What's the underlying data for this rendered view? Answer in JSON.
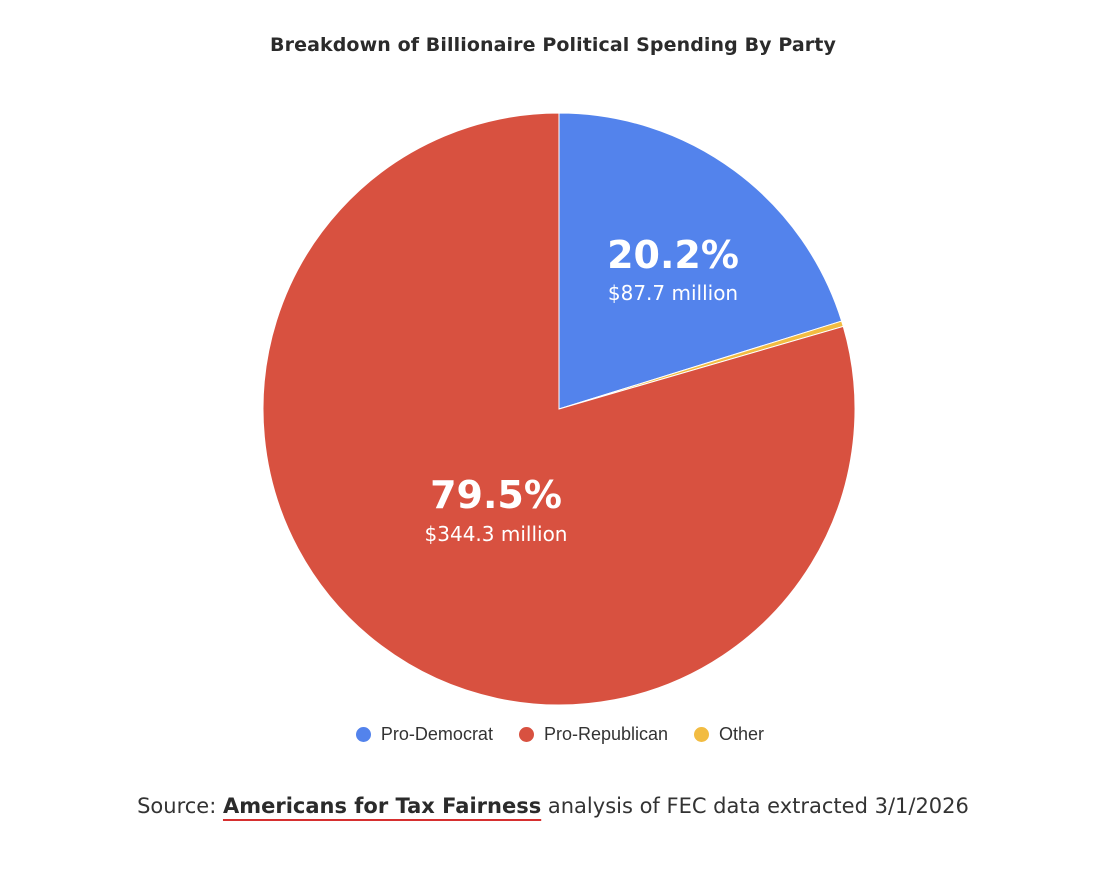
{
  "chart_data": {
    "type": "pie",
    "title": "Breakdown of Billionaire Political Spending By Party",
    "slices": [
      {
        "name": "Pro-Democrat",
        "percent": 20.2,
        "percent_label": "20.2%",
        "amount_label": "$87.7 million",
        "color": "#5383ec"
      },
      {
        "name": "Other",
        "percent": 0.3,
        "percent_label": "",
        "amount_label": "",
        "color": "#f2bc42"
      },
      {
        "name": "Pro-Republican",
        "percent": 79.5,
        "percent_label": "79.5%",
        "amount_label": "$344.3 million",
        "color": "#d85140"
      }
    ],
    "legend": [
      {
        "label": "Pro-Democrat",
        "color": "#5383ec"
      },
      {
        "label": "Pro-Republican",
        "color": "#d85140"
      },
      {
        "label": "Other",
        "color": "#f2bc42"
      }
    ],
    "legend_position": "bottom"
  },
  "source": {
    "prefix": "Source: ",
    "link_text": "Americans for Tax Fairness",
    "suffix": " analysis of FEC data extracted 3/1/2026",
    "underline_color": "#d62f2f"
  }
}
